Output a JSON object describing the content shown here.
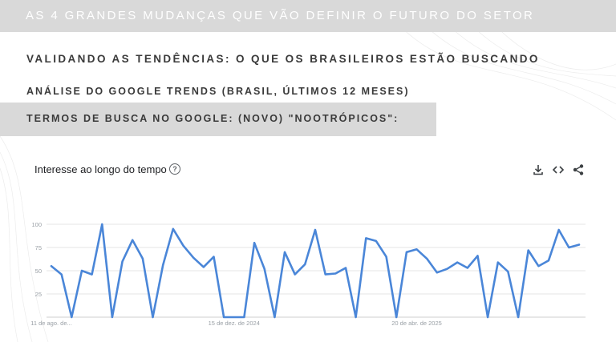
{
  "header": {
    "title": "AS 4 GRANDES MUDANÇAS QUE VÃO DEFINIR O FUTURO DO SETOR"
  },
  "section": {
    "heading": "VALIDANDO AS TENDÊNCIAS: O QUE OS BRASILEIROS ESTÃO BUSCANDO",
    "subheading": "ANÁLISE DO GOOGLE TRENDS (BRASIL, ÚLTIMOS 12 MESES)",
    "search_term": "TERMOS DE BUSCA NO GOOGLE: (NOVO) \"NOOTRÓPICOS\":"
  },
  "card": {
    "title": "Interesse ao longo do tempo",
    "help_icon": "help-circle-icon",
    "download_icon": "download-icon",
    "embed_icon": "embed-code-icon",
    "share_icon": "share-icon"
  },
  "colors": {
    "line": "#4a86d8",
    "grid": "#e6e6e6",
    "band": "#d9d9d9"
  },
  "chart_data": {
    "type": "line",
    "title": "Interesse ao longo do tempo",
    "xlabel": "",
    "ylabel": "",
    "ylim": [
      0,
      100
    ],
    "yticks": [
      25,
      50,
      75,
      100
    ],
    "x_tick_labels": [
      {
        "index": 0,
        "label": "11 de ago. de..."
      },
      {
        "index": 18,
        "label": "15 de dez. de 2024"
      },
      {
        "index": 36,
        "label": "20 de abr. de 2025"
      }
    ],
    "grid": true,
    "values": [
      55,
      46,
      0,
      50,
      46,
      100,
      0,
      60,
      83,
      63,
      0,
      56,
      95,
      77,
      64,
      54,
      65,
      0,
      0,
      0,
      80,
      52,
      0,
      70,
      46,
      57,
      94,
      46,
      47,
      53,
      0,
      85,
      82,
      65,
      0,
      70,
      73,
      63,
      48,
      52,
      59,
      53,
      66,
      0,
      59,
      49,
      0,
      72,
      55,
      61,
      94,
      75,
      78
    ]
  }
}
